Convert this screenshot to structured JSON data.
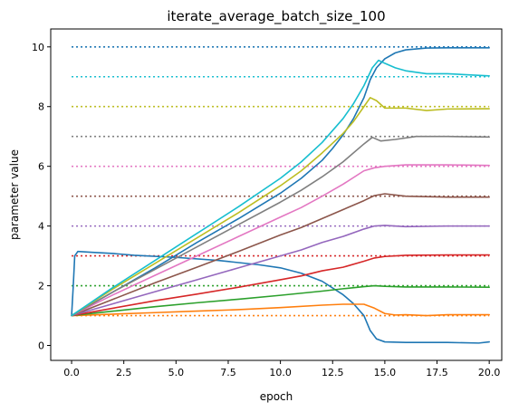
{
  "chart_data": {
    "type": "line",
    "title": "iterate_average_batch_size_100",
    "xlabel": "epoch",
    "ylabel": "parameter value",
    "xlim": [
      -1,
      20.6
    ],
    "ylim": [
      -0.5,
      10.6
    ],
    "xticks": [
      0.0,
      2.5,
      5.0,
      7.5,
      10.0,
      12.5,
      15.0,
      17.5,
      20.0
    ],
    "xtick_labels": [
      "0.0",
      "2.5",
      "5.0",
      "7.5",
      "10.0",
      "12.5",
      "15.0",
      "17.5",
      "20.0"
    ],
    "yticks": [
      0,
      2,
      4,
      6,
      8,
      10
    ],
    "ytick_labels": [
      "0",
      "2",
      "4",
      "6",
      "8",
      "10"
    ],
    "grid": false,
    "legend": false,
    "targets": {
      "style": "dotted",
      "x_range": [
        0,
        20
      ],
      "levels": [
        {
          "y": 1,
          "color": "#ff7f0e"
        },
        {
          "y": 2,
          "color": "#2ca02c"
        },
        {
          "y": 3,
          "color": "#d62728"
        },
        {
          "y": 4,
          "color": "#9467bd"
        },
        {
          "y": 5,
          "color": "#8c564b"
        },
        {
          "y": 6,
          "color": "#e377c2"
        },
        {
          "y": 7,
          "color": "#7f7f7f"
        },
        {
          "y": 8,
          "color": "#bcbd22"
        },
        {
          "y": 9,
          "color": "#17becf"
        },
        {
          "y": 10,
          "color": "#1f77b4"
        }
      ]
    },
    "series": [
      {
        "color": "#1f77b4",
        "points": [
          [
            0,
            1.0
          ],
          [
            0.08,
            2.0
          ],
          [
            0.15,
            3.0
          ],
          [
            0.3,
            3.15
          ],
          [
            1,
            3.12
          ],
          [
            2,
            3.08
          ],
          [
            3,
            3.02
          ],
          [
            5,
            2.95
          ],
          [
            7,
            2.85
          ],
          [
            9,
            2.7
          ],
          [
            10,
            2.6
          ],
          [
            11,
            2.42
          ],
          [
            12,
            2.15
          ],
          [
            13,
            1.7
          ],
          [
            13.5,
            1.4
          ],
          [
            14,
            1.0
          ],
          [
            14.3,
            0.5
          ],
          [
            14.6,
            0.22
          ],
          [
            15,
            0.12
          ],
          [
            16,
            0.1
          ],
          [
            18,
            0.1
          ],
          [
            19.5,
            0.08
          ],
          [
            20,
            0.12
          ]
        ]
      },
      {
        "color": "#1f77b4",
        "points": [
          [
            0,
            1.0
          ],
          [
            2,
            1.8
          ],
          [
            4,
            2.6
          ],
          [
            6,
            3.45
          ],
          [
            8,
            4.25
          ],
          [
            10,
            5.1
          ],
          [
            11,
            5.6
          ],
          [
            12,
            6.2
          ],
          [
            12.5,
            6.6
          ],
          [
            13,
            7.05
          ],
          [
            13.5,
            7.6
          ],
          [
            14,
            8.3
          ],
          [
            14.3,
            8.9
          ],
          [
            14.6,
            9.3
          ],
          [
            15,
            9.6
          ],
          [
            15.5,
            9.8
          ],
          [
            16,
            9.9
          ],
          [
            17,
            9.96
          ],
          [
            18,
            9.97
          ],
          [
            20,
            9.97
          ]
        ]
      },
      {
        "color": "#ff7f0e",
        "points": [
          [
            0,
            1.0
          ],
          [
            2,
            1.05
          ],
          [
            4,
            1.1
          ],
          [
            6,
            1.15
          ],
          [
            8,
            1.2
          ],
          [
            10,
            1.27
          ],
          [
            12,
            1.35
          ],
          [
            13,
            1.38
          ],
          [
            14,
            1.38
          ],
          [
            14.5,
            1.25
          ],
          [
            15,
            1.07
          ],
          [
            15.5,
            1.02
          ],
          [
            16,
            1.03
          ],
          [
            17,
            1.0
          ],
          [
            18,
            1.03
          ],
          [
            20,
            1.03
          ]
        ]
      },
      {
        "color": "#2ca02c",
        "points": [
          [
            0,
            1.0
          ],
          [
            2,
            1.15
          ],
          [
            4,
            1.3
          ],
          [
            6,
            1.43
          ],
          [
            8,
            1.55
          ],
          [
            10,
            1.68
          ],
          [
            12,
            1.82
          ],
          [
            13,
            1.9
          ],
          [
            14,
            1.97
          ],
          [
            14.5,
            2.0
          ],
          [
            15,
            1.98
          ],
          [
            16,
            1.96
          ],
          [
            18,
            1.96
          ],
          [
            20,
            1.95
          ]
        ]
      },
      {
        "color": "#d62728",
        "points": [
          [
            0,
            1.0
          ],
          [
            2,
            1.25
          ],
          [
            4,
            1.5
          ],
          [
            6,
            1.72
          ],
          [
            8,
            1.95
          ],
          [
            10,
            2.2
          ],
          [
            11,
            2.33
          ],
          [
            12,
            2.5
          ],
          [
            13,
            2.62
          ],
          [
            14,
            2.82
          ],
          [
            14.5,
            2.93
          ],
          [
            15,
            2.98
          ],
          [
            16,
            3.02
          ],
          [
            18,
            3.03
          ],
          [
            20,
            3.03
          ]
        ]
      },
      {
        "color": "#9467bd",
        "points": [
          [
            0,
            1.0
          ],
          [
            2,
            1.4
          ],
          [
            4,
            1.8
          ],
          [
            6,
            2.2
          ],
          [
            8,
            2.6
          ],
          [
            10,
            3.0
          ],
          [
            11,
            3.2
          ],
          [
            12,
            3.45
          ],
          [
            13,
            3.65
          ],
          [
            14,
            3.9
          ],
          [
            14.5,
            4.0
          ],
          [
            15,
            4.02
          ],
          [
            16,
            3.98
          ],
          [
            18,
            4.0
          ],
          [
            20,
            4.0
          ]
        ]
      },
      {
        "color": "#8c564b",
        "points": [
          [
            0,
            1.0
          ],
          [
            2,
            1.55
          ],
          [
            4,
            2.1
          ],
          [
            6,
            2.62
          ],
          [
            8,
            3.15
          ],
          [
            10,
            3.7
          ],
          [
            11,
            3.95
          ],
          [
            12,
            4.25
          ],
          [
            13,
            4.55
          ],
          [
            14,
            4.85
          ],
          [
            14.5,
            5.02
          ],
          [
            15,
            5.08
          ],
          [
            16,
            5.0
          ],
          [
            18,
            4.97
          ],
          [
            20,
            4.97
          ]
        ]
      },
      {
        "color": "#e377c2",
        "points": [
          [
            0,
            1.0
          ],
          [
            2,
            1.7
          ],
          [
            4,
            2.35
          ],
          [
            6,
            3.0
          ],
          [
            8,
            3.65
          ],
          [
            10,
            4.3
          ],
          [
            11,
            4.62
          ],
          [
            12,
            5.0
          ],
          [
            13,
            5.4
          ],
          [
            14,
            5.85
          ],
          [
            14.5,
            5.95
          ],
          [
            15,
            6.0
          ],
          [
            16,
            6.05
          ],
          [
            18,
            6.05
          ],
          [
            20,
            6.03
          ]
        ]
      },
      {
        "color": "#7f7f7f",
        "points": [
          [
            0,
            1.0
          ],
          [
            2,
            1.8
          ],
          [
            4,
            2.55
          ],
          [
            6,
            3.3
          ],
          [
            8,
            4.05
          ],
          [
            10,
            4.8
          ],
          [
            11,
            5.2
          ],
          [
            12,
            5.65
          ],
          [
            13,
            6.15
          ],
          [
            14,
            6.75
          ],
          [
            14.4,
            6.97
          ],
          [
            14.8,
            6.85
          ],
          [
            15.5,
            6.9
          ],
          [
            16.5,
            7.0
          ],
          [
            18,
            7.0
          ],
          [
            20,
            6.98
          ]
        ]
      },
      {
        "color": "#bcbd22",
        "points": [
          [
            0,
            1.0
          ],
          [
            2,
            1.9
          ],
          [
            4,
            2.75
          ],
          [
            6,
            3.6
          ],
          [
            8,
            4.45
          ],
          [
            10,
            5.35
          ],
          [
            11,
            5.85
          ],
          [
            12,
            6.45
          ],
          [
            13,
            7.1
          ],
          [
            13.5,
            7.5
          ],
          [
            14,
            8.0
          ],
          [
            14.3,
            8.3
          ],
          [
            14.6,
            8.2
          ],
          [
            15,
            7.95
          ],
          [
            16,
            7.95
          ],
          [
            17,
            7.87
          ],
          [
            18,
            7.92
          ],
          [
            20,
            7.93
          ]
        ]
      },
      {
        "color": "#17becf",
        "points": [
          [
            0,
            1.0
          ],
          [
            2,
            1.95
          ],
          [
            4,
            2.85
          ],
          [
            6,
            3.75
          ],
          [
            8,
            4.65
          ],
          [
            10,
            5.6
          ],
          [
            11,
            6.15
          ],
          [
            12,
            6.8
          ],
          [
            13,
            7.6
          ],
          [
            13.5,
            8.1
          ],
          [
            14,
            8.7
          ],
          [
            14.4,
            9.3
          ],
          [
            14.7,
            9.55
          ],
          [
            15,
            9.45
          ],
          [
            15.5,
            9.3
          ],
          [
            16,
            9.2
          ],
          [
            17,
            9.1
          ],
          [
            18,
            9.1
          ],
          [
            20,
            9.03
          ]
        ]
      }
    ]
  }
}
